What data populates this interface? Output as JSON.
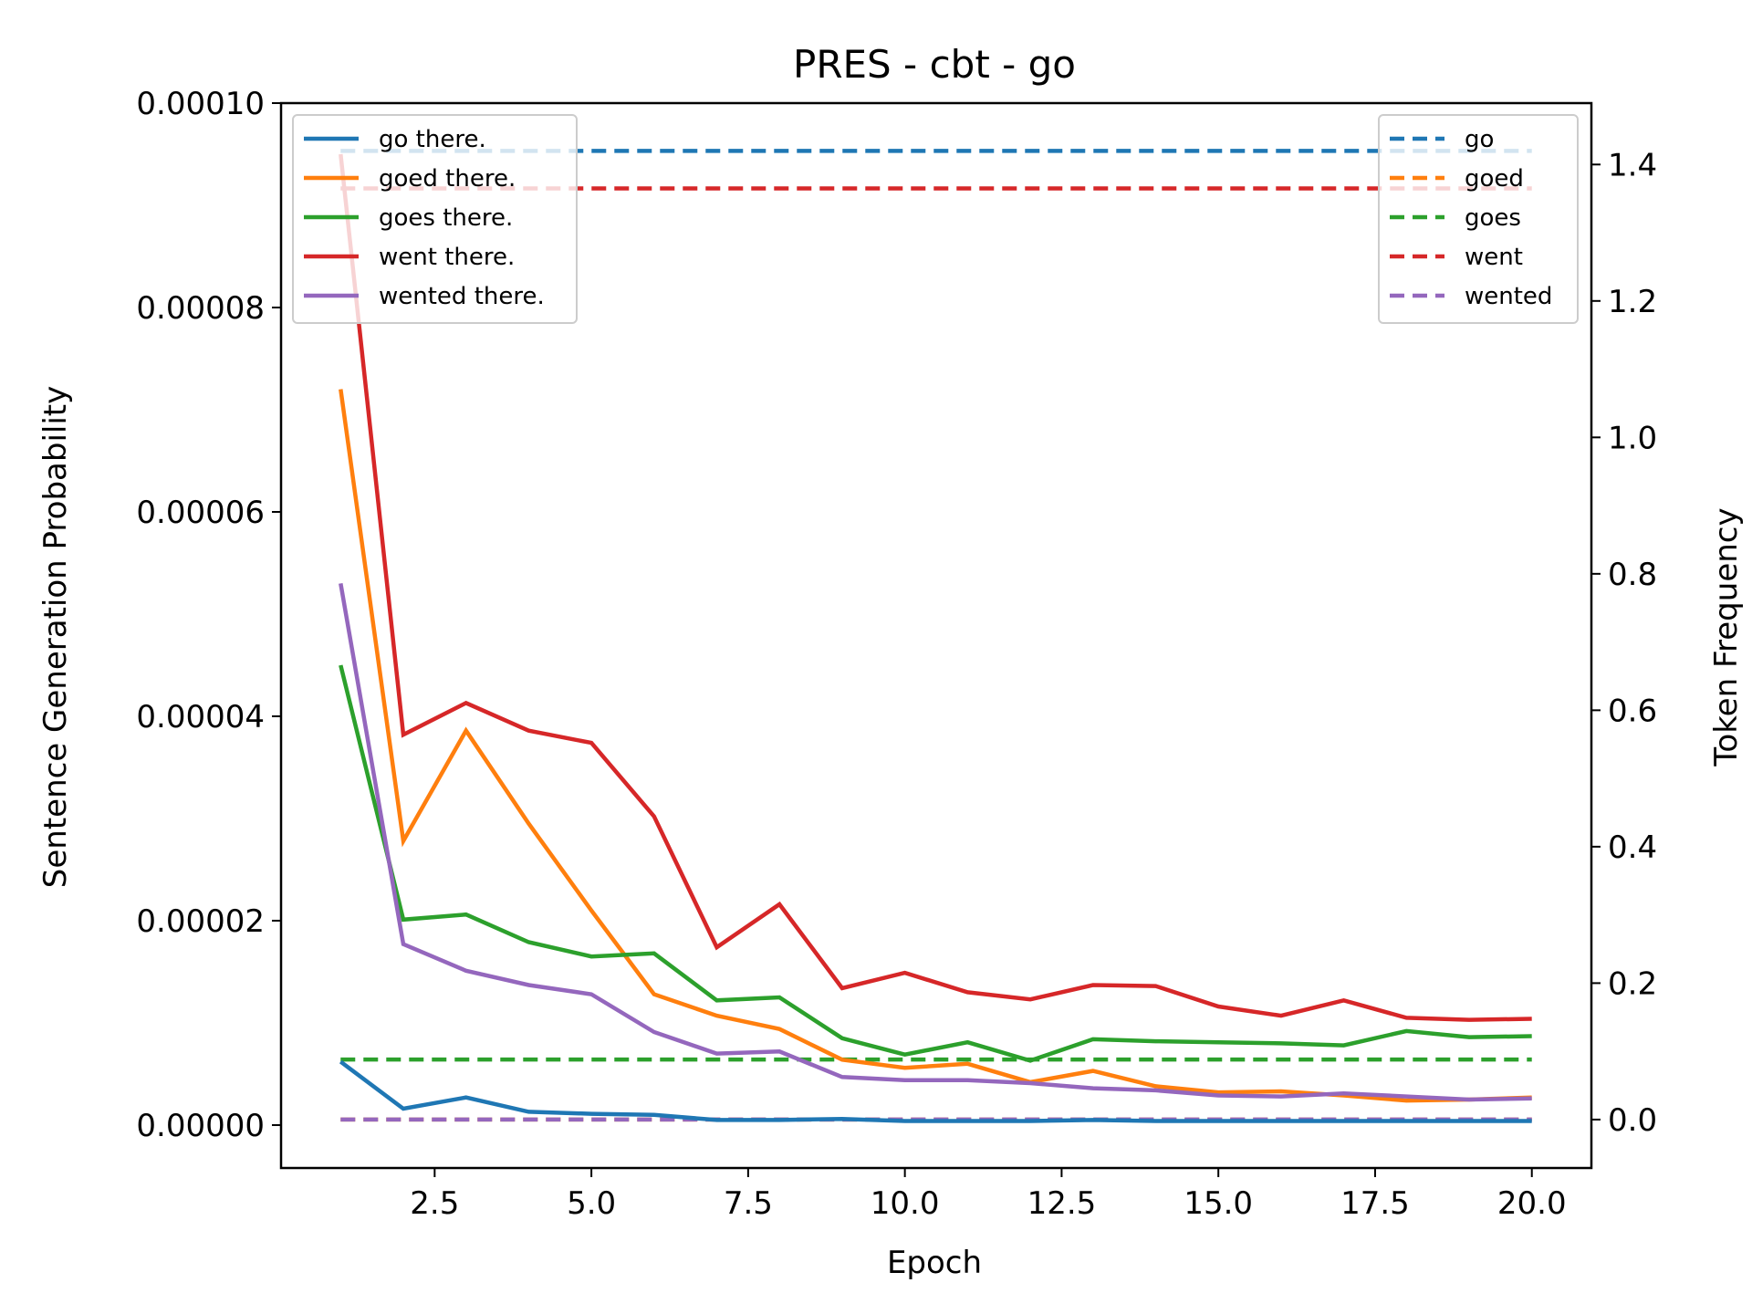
{
  "chart_data": {
    "type": "line",
    "title": "PRES - cbt - go",
    "xlabel": "Epoch",
    "ylabel": "Sentence Generation Probability",
    "y2label": "Token Frequency",
    "xlim": [
      0.05,
      20.95
    ],
    "ylim": [
      -4.2e-06,
      0.0001
    ],
    "y2lim": [
      -0.071,
      1.49
    ],
    "xticks": [
      2.5,
      5.0,
      7.5,
      10.0,
      12.5,
      15.0,
      17.5,
      20.0
    ],
    "xtick_labels": [
      "2.5",
      "5.0",
      "7.5",
      "10.0",
      "12.5",
      "15.0",
      "17.5",
      "20.0"
    ],
    "yticks": [
      0,
      2e-05,
      4e-05,
      6e-05,
      8e-05,
      0.0001
    ],
    "ytick_labels": [
      "0.00000",
      "0.00002",
      "0.00004",
      "0.00006",
      "0.00008",
      "0.00010"
    ],
    "y2ticks": [
      0.0,
      0.2,
      0.4,
      0.6,
      0.8,
      1.0,
      1.2,
      1.4
    ],
    "y2tick_labels": [
      "0.0",
      "0.2",
      "0.4",
      "0.6",
      "0.8",
      "1.0",
      "1.2",
      "1.4"
    ],
    "x": [
      1,
      2,
      3,
      4,
      5,
      6,
      7,
      8,
      9,
      10,
      11,
      12,
      13,
      14,
      15,
      16,
      17,
      18,
      19,
      20
    ],
    "series": [
      {
        "name": "go there.",
        "color": "#1f77b4",
        "values": [
          6.2e-06,
          1.6e-06,
          2.7e-06,
          1.3e-06,
          1.1e-06,
          1e-06,
          5e-07,
          5e-07,
          6e-07,
          4e-07,
          4e-07,
          4e-07,
          5e-07,
          4e-07,
          4e-07,
          4e-07,
          4e-07,
          4e-07,
          4e-07,
          4e-07
        ]
      },
      {
        "name": "goed there.",
        "color": "#ff7f0e",
        "values": [
          7.2e-05,
          2.78e-05,
          3.86e-05,
          2.95e-05,
          2.1e-05,
          1.28e-05,
          1.07e-05,
          9.4e-06,
          6.4e-06,
          5.6e-06,
          6e-06,
          4.2e-06,
          5.3e-06,
          3.8e-06,
          3.2e-06,
          3.3e-06,
          2.9e-06,
          2.4e-06,
          2.5e-06,
          2.7e-06
        ]
      },
      {
        "name": "goes there.",
        "color": "#2ca02c",
        "values": [
          4.5e-05,
          2.01e-05,
          2.06e-05,
          1.79e-05,
          1.65e-05,
          1.68e-05,
          1.22e-05,
          1.25e-05,
          8.5e-06,
          6.9e-06,
          8.1e-06,
          6.3e-06,
          8.4e-06,
          8.2e-06,
          8.1e-06,
          8e-06,
          7.8e-06,
          9.2e-06,
          8.6e-06,
          8.7e-06
        ]
      },
      {
        "name": "went there.",
        "color": "#d62728",
        "values": [
          9.5e-05,
          3.82e-05,
          4.13e-05,
          3.86e-05,
          3.74e-05,
          3.02e-05,
          1.74e-05,
          2.16e-05,
          1.34e-05,
          1.49e-05,
          1.3e-05,
          1.23e-05,
          1.37e-05,
          1.36e-05,
          1.16e-05,
          1.07e-05,
          1.22e-05,
          1.05e-05,
          1.03e-05,
          1.04e-05
        ]
      },
      {
        "name": "wented there.",
        "color": "#9467bd",
        "values": [
          5.3e-05,
          1.77e-05,
          1.51e-05,
          1.37e-05,
          1.28e-05,
          9.1e-06,
          7e-06,
          7.2e-06,
          4.7e-06,
          4.4e-06,
          4.4e-06,
          4.1e-06,
          3.6e-06,
          3.4e-06,
          2.9e-06,
          2.8e-06,
          3.1e-06,
          2.8e-06,
          2.5e-06,
          2.6e-06
        ]
      }
    ],
    "frequency_series": [
      {
        "name": "go",
        "color": "#1f77b4",
        "value": 1.42
      },
      {
        "name": "goed",
        "color": "#ff7f0e",
        "value": 0.0
      },
      {
        "name": "goes",
        "color": "#2ca02c",
        "value": 0.088
      },
      {
        "name": "went",
        "color": "#d62728",
        "value": 1.365
      },
      {
        "name": "wented",
        "color": "#9467bd",
        "value": 0.0
      }
    ],
    "legend_left": "upper-left",
    "legend_right": "upper-right"
  }
}
